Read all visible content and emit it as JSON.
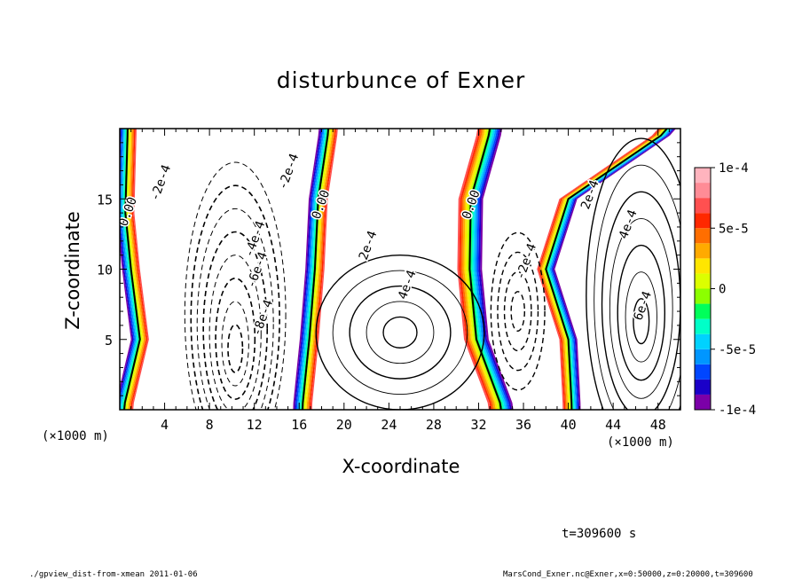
{
  "chart_data": {
    "type": "heatmap",
    "title": "disturbunce of Exner",
    "xlabel": "X-coordinate",
    "ylabel": "Z-coordinate",
    "x_unit": "(×1000 m)",
    "y_unit": "(×1000 m)",
    "xlim": [
      0,
      50
    ],
    "ylim": [
      0,
      20
    ],
    "x_ticks": [
      4,
      8,
      12,
      16,
      20,
      24,
      28,
      32,
      36,
      40,
      44,
      48
    ],
    "y_ticks": [
      5,
      10,
      15
    ],
    "colorbar": {
      "min": -0.0001,
      "max": 0.0001,
      "ticks": [
        -0.0001,
        -5e-05,
        0,
        5e-05,
        0.0001
      ],
      "tick_labels": [
        "-1e-4",
        "-5e-5",
        "0",
        "5e-5",
        "1e-4"
      ],
      "colors": [
        "#7b00a8",
        "#1a00c8",
        "#0046ff",
        "#0096ff",
        "#00d2ff",
        "#00ffc8",
        "#00ff5a",
        "#8cff00",
        "#dcff00",
        "#ffe600",
        "#ffaa00",
        "#ff6e00",
        "#ff2800",
        "#ff5050",
        "#ff8c96",
        "#ffb4be"
      ]
    },
    "contour_labels": [
      {
        "text": "0.00",
        "x": 0.6,
        "y": 13.0
      },
      {
        "text": "-2e-4",
        "x": 3.4,
        "y": 14.8
      },
      {
        "text": "-2e-4",
        "x": 14.8,
        "y": 15.6
      },
      {
        "text": "-4e-4",
        "x": 11.8,
        "y": 10.8
      },
      {
        "text": "-6e-4",
        "x": 12.0,
        "y": 8.6
      },
      {
        "text": "-8e-4",
        "x": 12.5,
        "y": 5.2
      },
      {
        "text": "0.00",
        "x": 17.8,
        "y": 13.5
      },
      {
        "text": "2e-4",
        "x": 22.0,
        "y": 10.6
      },
      {
        "text": "4e-4",
        "x": 25.5,
        "y": 7.8
      },
      {
        "text": "0.00",
        "x": 31.2,
        "y": 13.5
      },
      {
        "text": "-2e-4",
        "x": 36.0,
        "y": 9.2
      },
      {
        "text": "2e-4",
        "x": 41.8,
        "y": 14.2
      },
      {
        "text": "4e-4",
        "x": 45.2,
        "y": 12.1
      },
      {
        "text": "6e-4",
        "x": 46.5,
        "y": 6.3
      }
    ],
    "zero_lines": [
      {
        "z": [
          0.3,
          5,
          10,
          14,
          19.8
        ],
        "x": [
          0.4,
          1.8,
          1.0,
          0.5,
          0.7
        ]
      },
      {
        "z": [
          0.3,
          5,
          10,
          15,
          19.8
        ],
        "x": [
          16.3,
          16.9,
          17.4,
          17.7,
          18.6
        ]
      },
      {
        "z": [
          0.3,
          5,
          10,
          15,
          19.8
        ],
        "x": [
          34.0,
          31.8,
          31.2,
          31.3,
          33.0
        ]
      },
      {
        "z": [
          0.3,
          5,
          10,
          15,
          19.8
        ],
        "x": [
          40.3,
          40.0,
          38.0,
          40.0,
          48.8
        ]
      }
    ]
  },
  "labels": {
    "time": "t=309600 s",
    "footer_left": "./gpview_dist-from-xmean   2011-01-06",
    "footer_right": "MarsCond_Exner.nc@Exner,x=0:50000,z=0:20000,t=309600"
  }
}
